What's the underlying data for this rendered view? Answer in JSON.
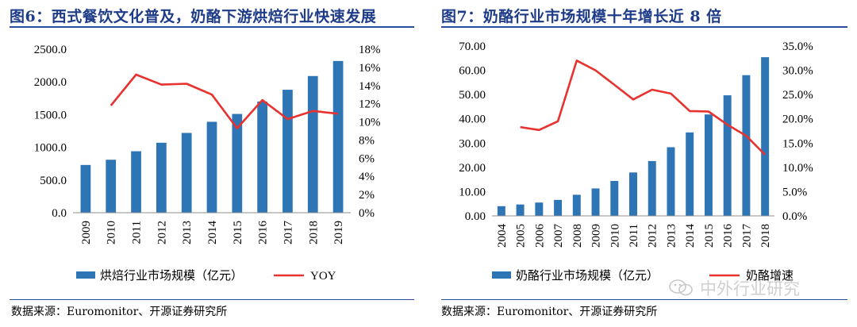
{
  "figure6": {
    "title": "图6：西式餐饮文化普及，奶酪下游烘焙行业快速发展",
    "source": "数据来源：Euromonitor、开源证券研究所"
  },
  "figure7": {
    "title": "图7：奶酪行业市场规模十年增长近 8 倍",
    "source": "数据来源：Euromonitor、开源证券研究所"
  },
  "watermark": {
    "text": "中外行业研究"
  },
  "colors": {
    "bar": "#2e75b6",
    "line": "#e8322f",
    "title": "#1f3c88"
  },
  "chart_data": [
    {
      "type": "bar",
      "title": "图6：西式餐饮文化普及，奶酪下游烘焙行业快速发展",
      "categories": [
        "2009",
        "2010",
        "2011",
        "2012",
        "2013",
        "2014",
        "2015",
        "2016",
        "2017",
        "2018",
        "2019"
      ],
      "series": [
        {
          "name": "烘焙行业市场规模（亿元）",
          "kind": "bar",
          "axis": "left",
          "values": [
            730,
            810,
            940,
            1070,
            1220,
            1390,
            1510,
            1700,
            1880,
            2090,
            2320
          ]
        },
        {
          "name": "YOY",
          "kind": "line",
          "axis": "right",
          "values": [
            null,
            11.8,
            15.2,
            14.1,
            14.2,
            13.0,
            9.3,
            12.4,
            10.3,
            11.2,
            10.9
          ]
        }
      ],
      "yleft": {
        "ylim": [
          0,
          2500
        ],
        "ticks": [
          "0.0",
          "500.0",
          "1000.0",
          "1500.0",
          "2000.0",
          "2500.0"
        ]
      },
      "yright": {
        "ylim": [
          0,
          18
        ],
        "ticks": [
          "0%",
          "2%",
          "4%",
          "6%",
          "8%",
          "10%",
          "12%",
          "14%",
          "16%",
          "18%"
        ]
      },
      "legend": [
        "烘焙行业市场规模（亿元）",
        "YOY"
      ]
    },
    {
      "type": "bar",
      "title": "图7：奶酪行业市场规模十年增长近 8 倍",
      "categories": [
        "2004",
        "2005",
        "2006",
        "2007",
        "2008",
        "2009",
        "2010",
        "2011",
        "2012",
        "2013",
        "2014",
        "2015",
        "2016",
        "2017",
        "2018"
      ],
      "series": [
        {
          "name": "奶酪行业市场规模（亿元）",
          "kind": "bar",
          "axis": "left",
          "values": [
            4.0,
            4.7,
            5.5,
            6.6,
            8.7,
            11.3,
            14.4,
            17.9,
            22.6,
            28.3,
            34.4,
            41.8,
            49.7,
            58.0,
            65.4
          ]
        },
        {
          "name": "奶酪增速",
          "kind": "line",
          "axis": "right",
          "values": [
            null,
            18.3,
            17.7,
            19.5,
            32.0,
            30.0,
            27.0,
            24.0,
            26.0,
            25.2,
            21.6,
            21.5,
            18.8,
            16.5,
            12.6
          ]
        }
      ],
      "yleft": {
        "ylim": [
          0,
          70
        ],
        "ticks": [
          "0.00",
          "10.00",
          "20.00",
          "30.00",
          "40.00",
          "50.00",
          "60.00",
          "70.00"
        ]
      },
      "yright": {
        "ylim": [
          0,
          35
        ],
        "ticks": [
          "0.0%",
          "5.0%",
          "10.0%",
          "15.0%",
          "20.0%",
          "25.0%",
          "30.0%",
          "35.0%"
        ]
      },
      "legend": [
        "奶酪行业市场规模（亿元）",
        "奶酪增速"
      ]
    }
  ]
}
